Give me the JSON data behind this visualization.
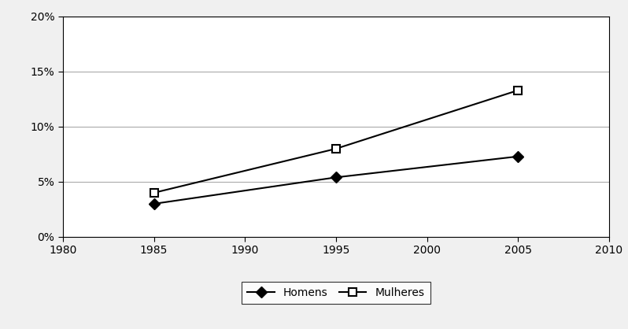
{
  "x": [
    1985,
    1995,
    2005
  ],
  "homens": [
    0.03,
    0.054,
    0.073
  ],
  "mulheres": [
    0.04,
    0.08,
    0.133
  ],
  "homens_label": "Homens",
  "mulheres_label": "Mulheres",
  "xlim": [
    1980,
    2010
  ],
  "xticks": [
    1980,
    1985,
    1990,
    1995,
    2000,
    2005,
    2010
  ],
  "ylim": [
    0.0,
    0.2
  ],
  "yticks": [
    0.0,
    0.05,
    0.1,
    0.15,
    0.2
  ],
  "line_color": "#000000",
  "marker_homens": "D",
  "marker_mulheres": "s",
  "marker_size_homens": 7,
  "marker_size_mulheres": 7,
  "linewidth": 1.5,
  "background_color": "#f0f0f0",
  "plot_bg_color": "#ffffff",
  "grid_color": "#aaaaaa",
  "legend_ncol": 2,
  "tick_fontsize": 10,
  "legend_fontsize": 10
}
